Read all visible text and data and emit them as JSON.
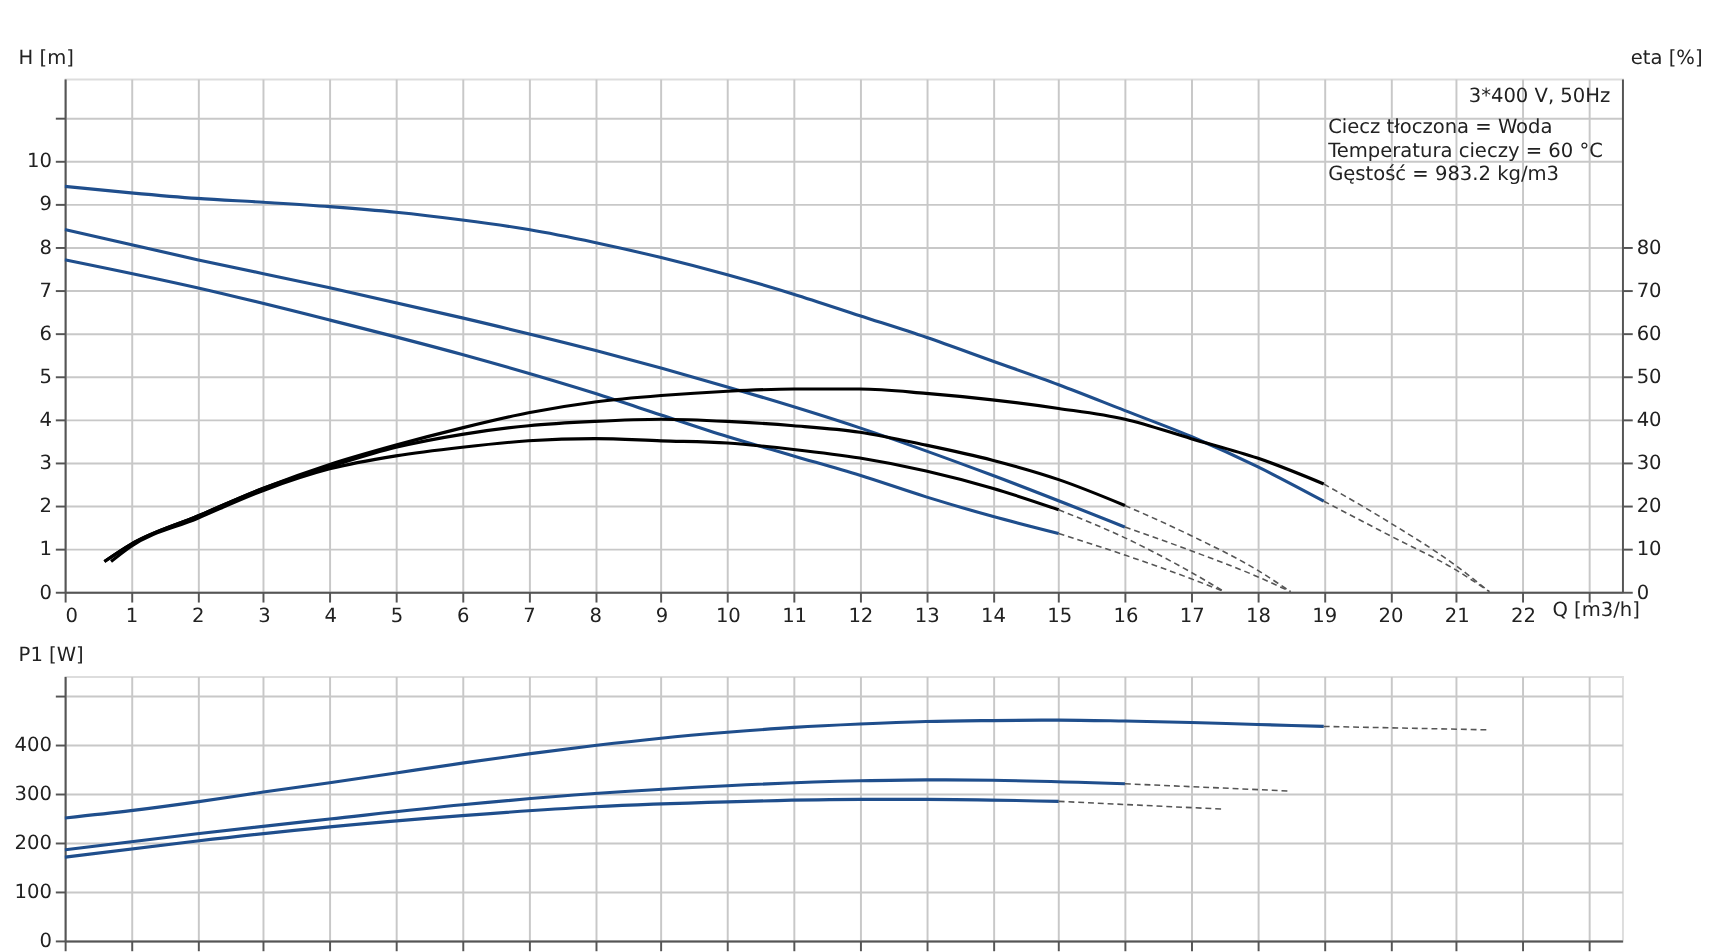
{
  "chart_data": [
    {
      "type": "line",
      "xlabel": "Q [m3/h]",
      "ylabel": "H [m]",
      "y2label": "eta [%]",
      "xlim": [
        0,
        23.5
      ],
      "ylim": [
        0,
        11.9
      ],
      "y2lim": [
        0,
        119
      ],
      "xticks": [
        0,
        1,
        2,
        3,
        4,
        5,
        6,
        7,
        8,
        9,
        10,
        11,
        12,
        13,
        14,
        15,
        16,
        17,
        18,
        19,
        20,
        21,
        22,
        {
          "value": 23,
          "label": null
        }
      ],
      "yticks": [
        0,
        1,
        2,
        3,
        4,
        5,
        6,
        7,
        8,
        9,
        10,
        {
          "value": 11,
          "label": null
        }
      ],
      "y2ticks": [
        0,
        10,
        20,
        30,
        40,
        50,
        60,
        70,
        80
      ],
      "grid": true,
      "marker": "none",
      "annotations": [
        "3*400 V, 50Hz",
        "Ciecz tłoczona = Woda",
        "Temperatura cieczy = 60 °C",
        "Gęstość = 983.2 kg/m3"
      ],
      "series": [
        {
          "color": "#1f4e8c",
          "line_style": "solid",
          "x": [
            0,
            1,
            2,
            3,
            4,
            5,
            6,
            7,
            8,
            9,
            10,
            11,
            12,
            13,
            14,
            15,
            16,
            17,
            18,
            19
          ],
          "values": [
            9.4,
            9.25,
            9.12,
            9.03,
            8.93,
            8.8,
            8.62,
            8.4,
            8.1,
            7.75,
            7.35,
            6.9,
            6.4,
            5.9,
            5.35,
            4.8,
            4.2,
            3.6,
            2.9,
            2.1
          ]
        },
        {
          "color": "#555555",
          "line_style": "dashed",
          "x": [
            19,
            20,
            21,
            21.5
          ],
          "values": [
            2.1,
            1.3,
            0.5,
            0
          ]
        },
        {
          "color": "#1f4e8c",
          "line_style": "solid",
          "x": [
            0,
            2,
            4,
            6,
            8,
            10,
            12,
            14,
            16
          ],
          "values": [
            8.4,
            7.7,
            7.05,
            6.35,
            5.6,
            4.75,
            3.8,
            2.7,
            1.5
          ]
        },
        {
          "color": "#555555",
          "line_style": "dashed",
          "x": [
            16,
            17,
            18,
            18.5
          ],
          "values": [
            1.5,
            0.95,
            0.35,
            0
          ]
        },
        {
          "color": "#1f4e8c",
          "line_style": "solid",
          "x": [
            0,
            2,
            4,
            6,
            8,
            9,
            10,
            11,
            12,
            13,
            14,
            15
          ],
          "values": [
            7.7,
            7.05,
            6.3,
            5.5,
            4.6,
            4.1,
            3.6,
            3.15,
            2.7,
            2.2,
            1.75,
            1.35
          ]
        },
        {
          "color": "#555555",
          "line_style": "dashed",
          "x": [
            15,
            16,
            17,
            17.5
          ],
          "values": [
            1.35,
            0.85,
            0.3,
            0
          ]
        },
        {
          "color": "#000000",
          "line_style": "solid",
          "axis": "y2",
          "x": [
            0.6,
            1,
            2,
            3,
            4,
            5,
            6,
            7,
            8,
            9,
            10,
            11,
            12,
            13,
            14,
            15,
            16,
            17,
            18,
            19
          ],
          "values": [
            7,
            11,
            17.5,
            24,
            29.5,
            34,
            38,
            41.5,
            44,
            45.5,
            46.5,
            47,
            47,
            46,
            44.5,
            42.5,
            40,
            35.5,
            31,
            25
          ]
        },
        {
          "color": "#555555",
          "line_style": "dashed",
          "axis": "y2",
          "x": [
            19,
            20,
            21,
            21.5
          ],
          "values": [
            25,
            16,
            6,
            0
          ]
        },
        {
          "color": "#000000",
          "line_style": "solid",
          "axis": "y2",
          "x": [
            0.6,
            1,
            2,
            3,
            4,
            5,
            6,
            7,
            8,
            9,
            10,
            11,
            12,
            13,
            14,
            15,
            16
          ],
          "values": [
            7,
            11,
            17.5,
            24,
            29,
            33.5,
            36.5,
            38.5,
            39.5,
            40,
            39.5,
            38.5,
            37,
            34,
            30.5,
            26,
            20
          ]
        },
        {
          "color": "#555555",
          "line_style": "dashed",
          "axis": "y2",
          "x": [
            16,
            17,
            18,
            18.5
          ],
          "values": [
            20,
            13,
            5,
            0
          ]
        },
        {
          "color": "#000000",
          "line_style": "solid",
          "axis": "y2",
          "x": [
            0.7,
            1,
            2,
            3,
            4,
            5,
            6,
            7,
            8,
            9,
            10,
            11,
            12,
            13,
            14,
            15
          ],
          "values": [
            7,
            10.5,
            17,
            23.5,
            28.5,
            31.5,
            33.5,
            35,
            35.5,
            35,
            34.5,
            33,
            31,
            28,
            24,
            19
          ]
        },
        {
          "color": "#555555",
          "line_style": "dashed",
          "axis": "y2",
          "x": [
            15,
            16,
            17,
            17.5
          ],
          "values": [
            19,
            12.5,
            4.5,
            0
          ]
        }
      ]
    },
    {
      "type": "line",
      "ylabel": "P1 [W]",
      "xlim": [
        0,
        23.5
      ],
      "ylim": [
        0,
        540
      ],
      "xticks": [
        0,
        1,
        2,
        3,
        4,
        5,
        6,
        7,
        8,
        9,
        10,
        11,
        12,
        13,
        14,
        15,
        16,
        17,
        18,
        19,
        20,
        21,
        22,
        23
      ],
      "yticks": [
        0,
        100,
        200,
        300,
        400,
        {
          "value": 500,
          "label": null
        }
      ],
      "tick_labels": "y",
      "grid": true,
      "marker": "none",
      "series": [
        {
          "color": "#1f4e8c",
          "line_style": "solid",
          "x": [
            0,
            1,
            2,
            3,
            4,
            5,
            6,
            7,
            8,
            9,
            10,
            11,
            12,
            13,
            14,
            15,
            16,
            17,
            18,
            19
          ],
          "values": [
            250,
            265,
            283,
            303,
            322,
            342,
            362,
            381,
            398,
            413,
            425,
            435,
            442,
            447,
            449,
            450,
            448,
            445,
            441,
            437
          ]
        },
        {
          "color": "#555555",
          "line_style": "dashed",
          "x": [
            19,
            21.5
          ],
          "values": [
            437,
            430
          ]
        },
        {
          "color": "#1f4e8c",
          "line_style": "solid",
          "x": [
            0,
            2,
            4,
            6,
            8,
            10,
            12,
            13,
            14,
            16
          ],
          "values": [
            185,
            218,
            248,
            277,
            300,
            316,
            326,
            328,
            327,
            320
          ]
        },
        {
          "color": "#555555",
          "line_style": "dashed",
          "x": [
            16,
            18.5
          ],
          "values": [
            320,
            305
          ]
        },
        {
          "color": "#1f4e8c",
          "line_style": "solid",
          "x": [
            0,
            2,
            4,
            6,
            8,
            10,
            12,
            13,
            15
          ],
          "values": [
            170,
            203,
            232,
            255,
            273,
            283,
            288,
            288,
            284
          ]
        },
        {
          "color": "#555555",
          "line_style": "dashed",
          "x": [
            15,
            17.5
          ],
          "values": [
            284,
            268
          ]
        }
      ]
    }
  ]
}
